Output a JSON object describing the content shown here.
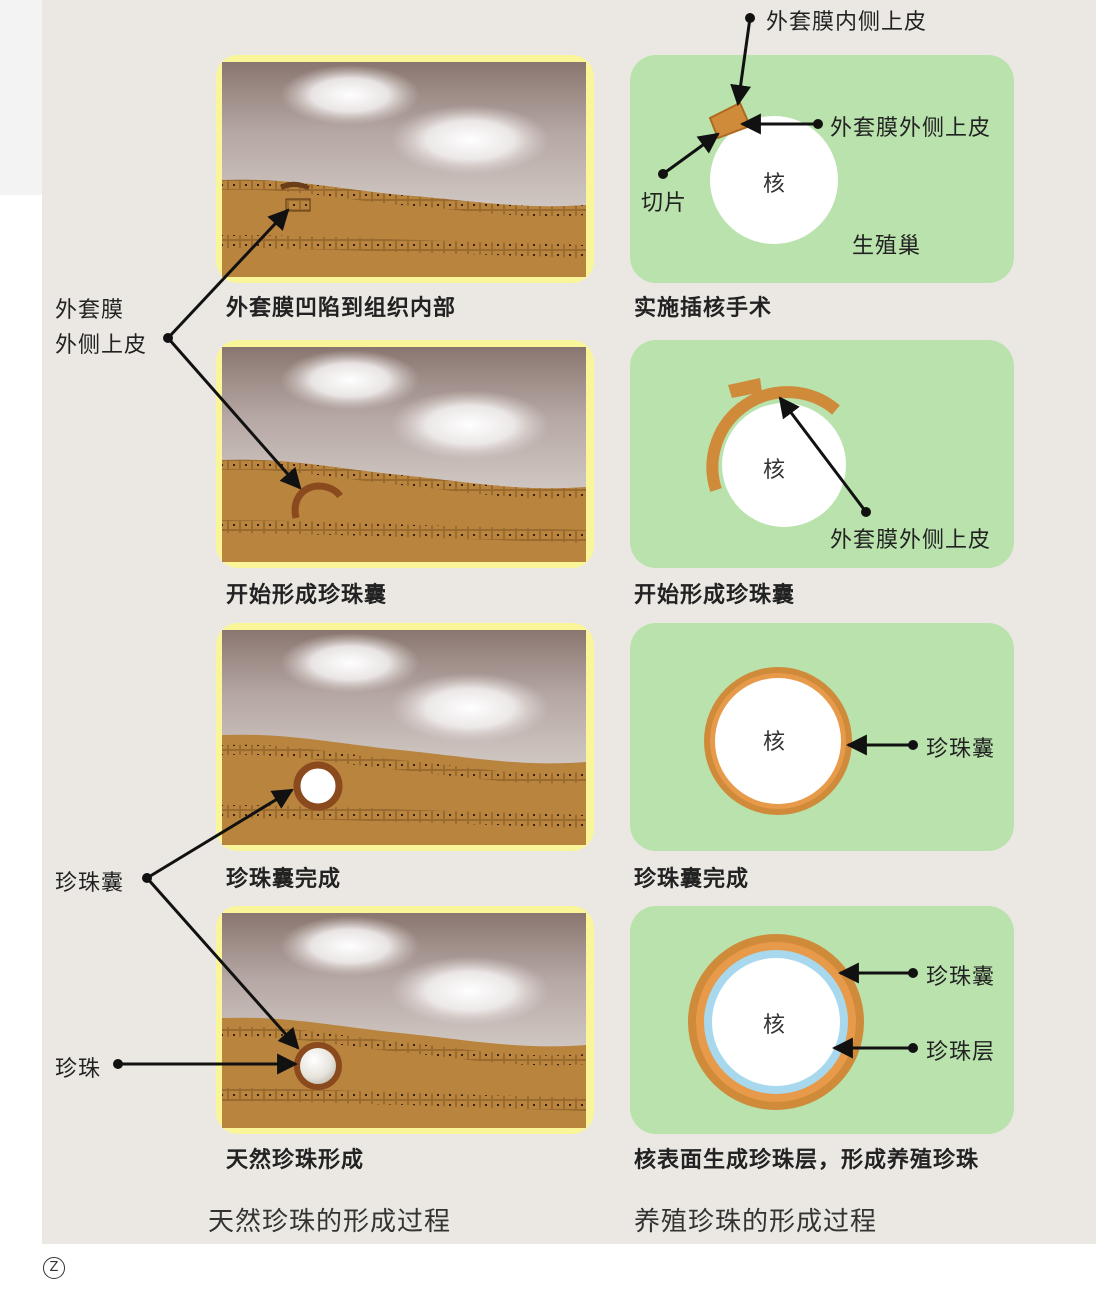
{
  "colors": {
    "background": "#ebe8e3",
    "natural_frame": "#fbf59a",
    "cultured_panel": "#b9e2ad",
    "tissue": "#b8843e",
    "tissue_dark": "#6b3e1a",
    "epithelium": "#cf8a3a",
    "nacre_layer": "#a8d8ee"
  },
  "natural": {
    "title": "天然珍珠的形成过程",
    "steps": [
      {
        "caption": "外套膜凹陷到组织内部"
      },
      {
        "caption": "开始形成珍珠囊"
      },
      {
        "caption": "珍珠囊完成"
      },
      {
        "caption": "天然珍珠形成"
      }
    ],
    "labels": {
      "mantle_line1": "外套膜",
      "mantle_line2": "外侧上皮",
      "pearl_sac": "珍珠囊",
      "pearl": "珍珠"
    }
  },
  "cultured": {
    "title": "养殖珍珠的形成过程",
    "core_label": "核",
    "steps": [
      {
        "caption": "实施插核手术",
        "labels": {
          "inner_epithelium": "外套膜内侧上皮",
          "outer_epithelium": "外套膜外侧上皮",
          "slice": "切片",
          "gonad": "生殖巢"
        }
      },
      {
        "caption": "开始形成珍珠囊",
        "labels": {
          "outer_epithelium": "外套膜外侧上皮"
        }
      },
      {
        "caption": "珍珠囊完成",
        "labels": {
          "pearl_sac": "珍珠囊"
        }
      },
      {
        "caption": "核表面生成珍珠层，形成养殖珍珠",
        "labels": {
          "pearl_sac": "珍珠囊",
          "nacre": "珍珠层"
        }
      }
    ]
  },
  "footer": {
    "mark": "Z"
  }
}
